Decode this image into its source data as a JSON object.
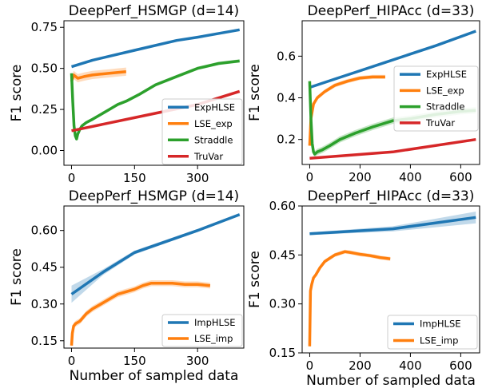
{
  "chart_data": [
    {
      "type": "line",
      "title": "DeepPerf_HSMGP (d=14)",
      "xlabel": "",
      "ylabel": "F1 score",
      "xlim": [
        -18,
        410
      ],
      "ylim": [
        -0.09,
        0.79
      ],
      "xticks": [
        0,
        150,
        300
      ],
      "yticks": [
        0.0,
        0.25,
        0.5,
        0.75
      ],
      "yticklabels": [
        "0.00",
        "0.25",
        "0.50",
        "0.75"
      ],
      "legend": "bottom-right",
      "series": [
        {
          "name": "ExpHLSE",
          "color": "#1f77b4",
          "band": 0.004,
          "x": [
            0,
            50,
            150,
            250,
            300,
            400
          ],
          "y": [
            0.51,
            0.55,
            0.61,
            0.67,
            0.69,
            0.735
          ]
        },
        {
          "name": "LSE_exp",
          "color": "#ff7f0e",
          "band": 0.025,
          "x": [
            0,
            5,
            15,
            30,
            50,
            70,
            90,
            110,
            130
          ],
          "y": [
            0.42,
            0.46,
            0.44,
            0.45,
            0.46,
            0.465,
            0.47,
            0.475,
            0.48
          ]
        },
        {
          "name": "Straddle",
          "color": "#2ca02c",
          "band": 0.01,
          "x": [
            0,
            3,
            6,
            9,
            12,
            15,
            20,
            25,
            35,
            50,
            70,
            90,
            110,
            130,
            160,
            200,
            250,
            300,
            350,
            400
          ],
          "y": [
            0.47,
            0.3,
            0.15,
            0.09,
            0.07,
            0.1,
            0.13,
            0.15,
            0.17,
            0.19,
            0.22,
            0.25,
            0.28,
            0.3,
            0.34,
            0.4,
            0.45,
            0.5,
            0.53,
            0.545
          ]
        },
        {
          "name": "TruVar",
          "color": "#d62728",
          "band": 0.002,
          "x": [
            0,
            150,
            300,
            400
          ],
          "y": [
            0.12,
            0.2,
            0.28,
            0.36
          ]
        }
      ]
    },
    {
      "type": "line",
      "title": "DeepPerf_HIPAcc (d=33)",
      "xlabel": "",
      "ylabel": "F1 score",
      "xlim": [
        -30,
        675
      ],
      "ylim": [
        0.08,
        0.77
      ],
      "xticks": [
        0,
        200,
        400,
        600
      ],
      "yticks": [
        0.2,
        0.4,
        0.6
      ],
      "yticklabels": [
        "0.2",
        "0.4",
        "0.6"
      ],
      "legend": "upper-right",
      "series": [
        {
          "name": "ExpHLSE",
          "color": "#1f77b4",
          "band": 0.006,
          "x": [
            0,
            100,
            200,
            300,
            400,
            500,
            660
          ],
          "y": [
            0.45,
            0.49,
            0.53,
            0.57,
            0.61,
            0.65,
            0.72
          ]
        },
        {
          "name": "LSE_exp",
          "color": "#ff7f0e",
          "band": 0.01,
          "x": [
            0,
            5,
            15,
            30,
            60,
            100,
            150,
            200,
            250,
            300
          ],
          "y": [
            0.17,
            0.3,
            0.37,
            0.4,
            0.43,
            0.46,
            0.48,
            0.495,
            0.5,
            0.5
          ]
        },
        {
          "name": "Straddle",
          "color": "#2ca02c",
          "band": 0.015,
          "x": [
            0,
            5,
            10,
            15,
            20,
            30,
            50,
            80,
            120,
            180,
            250,
            330,
            400,
            500,
            600,
            660
          ],
          "y": [
            0.48,
            0.3,
            0.18,
            0.14,
            0.13,
            0.14,
            0.15,
            0.17,
            0.2,
            0.23,
            0.26,
            0.29,
            0.3,
            0.32,
            0.335,
            0.34
          ]
        },
        {
          "name": "TruVar",
          "color": "#d62728",
          "band": 0.002,
          "x": [
            0,
            330,
            660
          ],
          "y": [
            0.11,
            0.14,
            0.2
          ]
        }
      ]
    },
    {
      "type": "line",
      "title": "DeepPerf_HSMGP (d=14)",
      "xlabel": "Number of sampled data",
      "ylabel": "F1 score",
      "xlim": [
        -18,
        410
      ],
      "ylim": [
        0.12,
        0.7
      ],
      "xticks": [
        0,
        150,
        300
      ],
      "yticks": [
        0.15,
        0.3,
        0.45,
        0.6
      ],
      "yticklabels": [
        "0.15",
        "0.30",
        "0.45",
        "0.60"
      ],
      "legend": "bottom-right",
      "series": [
        {
          "name": "ImpHLSE",
          "color": "#1f77b4",
          "band": [
            0.035,
            0.012,
            0.008,
            0.006,
            0.005
          ],
          "x": [
            0,
            75,
            150,
            300,
            400
          ],
          "y": [
            0.34,
            0.43,
            0.51,
            0.6,
            0.665
          ]
        },
        {
          "name": "LSE_imp",
          "color": "#ff7f0e",
          "band": 0.012,
          "x": [
            0,
            2,
            5,
            10,
            20,
            35,
            50,
            70,
            90,
            110,
            130,
            150,
            170,
            190,
            210,
            240,
            270,
            300,
            330
          ],
          "y": [
            0.13,
            0.18,
            0.21,
            0.22,
            0.23,
            0.26,
            0.28,
            0.3,
            0.32,
            0.34,
            0.35,
            0.36,
            0.375,
            0.385,
            0.385,
            0.385,
            0.38,
            0.38,
            0.375
          ]
        }
      ]
    },
    {
      "type": "line",
      "title": "DeepPerf_HIPAcc (d=33)",
      "xlabel": "Number of sampled data",
      "ylabel": "F1 score",
      "xlim": [
        -30,
        675
      ],
      "ylim": [
        0.15,
        0.6
      ],
      "xticks": [
        0,
        200,
        400,
        600
      ],
      "yticks": [
        0.15,
        0.3,
        0.45,
        0.6
      ],
      "yticklabels": [
        "0.15",
        "0.30",
        "0.45",
        "0.60"
      ],
      "legend": "bottom-right",
      "series": [
        {
          "name": "ImpHLSE",
          "color": "#1f77b4",
          "band": [
            0.004,
            0.008,
            0.018
          ],
          "x": [
            0,
            330,
            660
          ],
          "y": [
            0.515,
            0.53,
            0.565
          ]
        },
        {
          "name": "LSE_imp",
          "color": "#ff7f0e",
          "band": 0.006,
          "x": [
            0,
            3,
            8,
            15,
            25,
            40,
            60,
            80,
            100,
            120,
            140,
            160,
            180,
            200,
            220,
            240,
            260,
            280,
            300,
            320
          ],
          "y": [
            0.17,
            0.34,
            0.36,
            0.38,
            0.39,
            0.41,
            0.43,
            0.44,
            0.45,
            0.455,
            0.46,
            0.458,
            0.455,
            0.452,
            0.45,
            0.448,
            0.445,
            0.442,
            0.44,
            0.438
          ]
        }
      ]
    }
  ]
}
